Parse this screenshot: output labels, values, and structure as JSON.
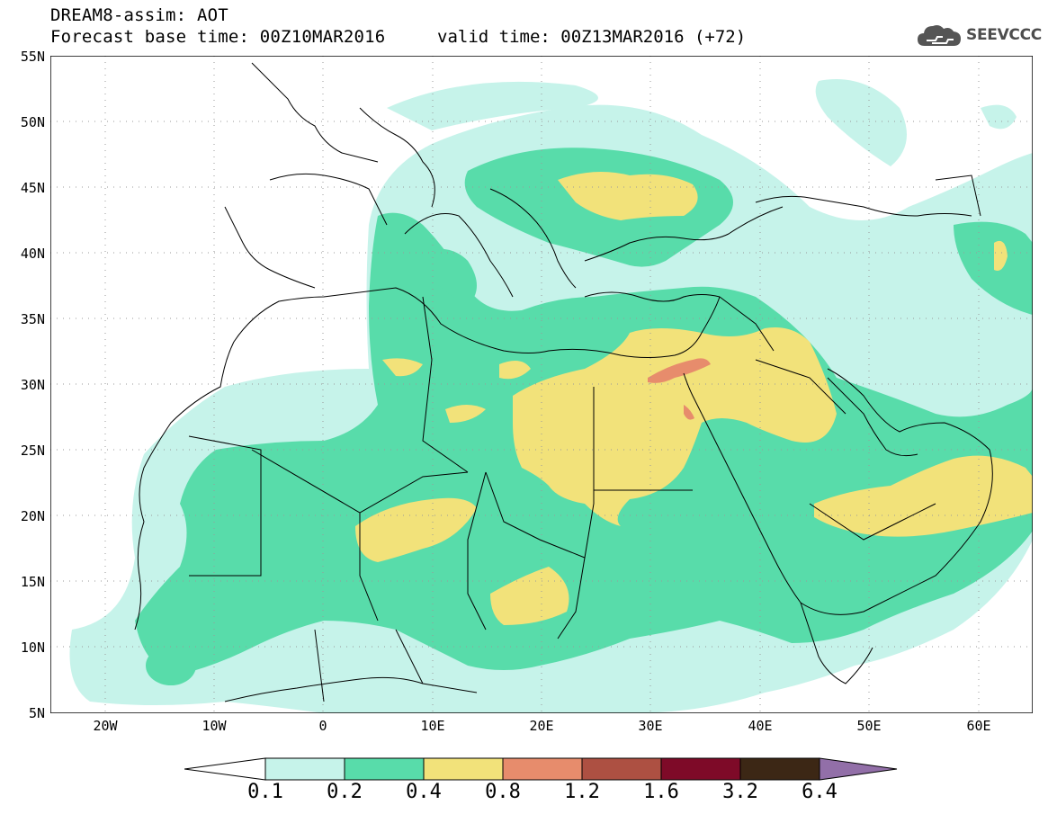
{
  "header": {
    "title_line1": "DREAM8-assim: AOT",
    "base_time": "Forecast base time: 00Z10MAR2016",
    "valid_time": "valid time: 00Z13MAR2016 (+72)"
  },
  "logo": {
    "text": "SEEVCCC",
    "icon": "cloud-icon"
  },
  "map": {
    "lat_labels": [
      "55N",
      "50N",
      "45N",
      "40N",
      "35N",
      "30N",
      "25N",
      "20N",
      "15N",
      "10N",
      "5N"
    ],
    "lon_labels": [
      "20W",
      "10W",
      "0",
      "10E",
      "20E",
      "30E",
      "40E",
      "50E",
      "60E"
    ],
    "colors": {
      "c01": "#c6f3ea",
      "c02": "#58dcaa",
      "c04": "#f2e27a",
      "c08": "#e78c6c",
      "c12": "#ad5042",
      "c16": "#7e0a28",
      "c32": "#3c2715",
      "c64": "#926fa8"
    }
  },
  "colorbar": {
    "labels": [
      "0.1",
      "0.2",
      "0.4",
      "0.8",
      "1.2",
      "1.6",
      "3.2",
      "6.4"
    ]
  }
}
